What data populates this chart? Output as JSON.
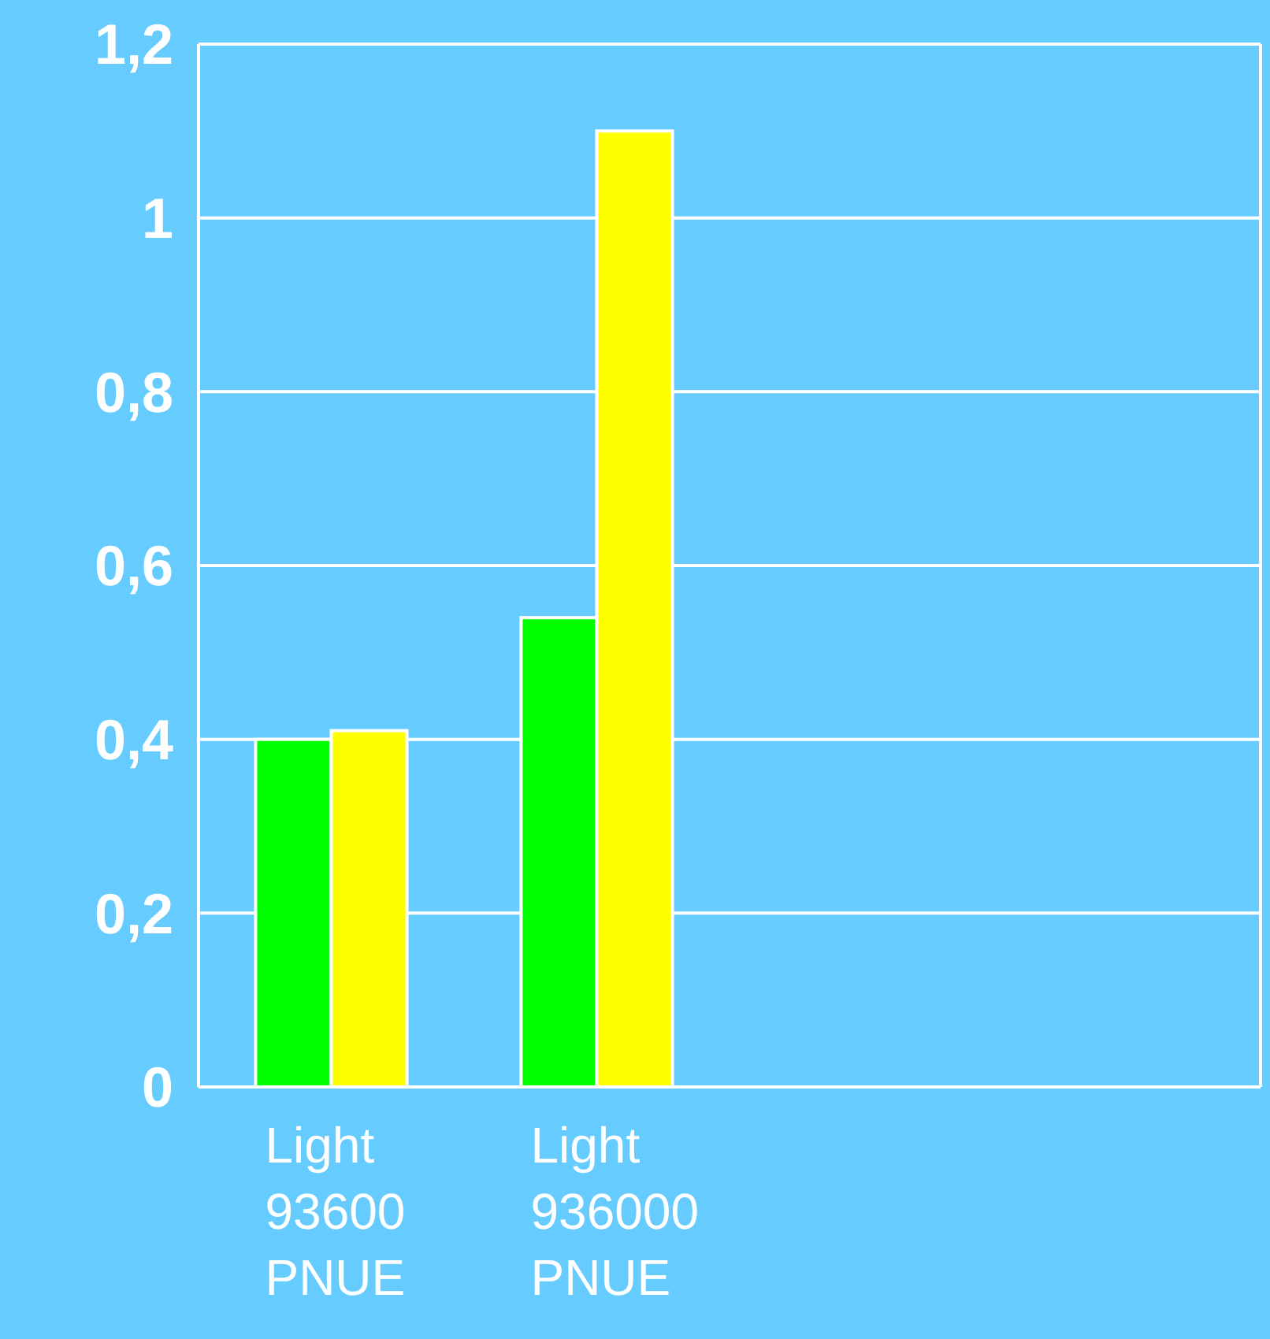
{
  "chart_data": {
    "type": "bar",
    "categories": [
      "Light\n93600\nPNUE",
      "Light\n936000\nPNUE",
      null,
      null
    ],
    "series": [
      {
        "color": "#00ff00",
        "values": [
          0.4,
          0.54,
          null,
          null
        ]
      },
      {
        "color": "#ffff00",
        "values": [
          0.41,
          1.1,
          null,
          null
        ]
      }
    ],
    "ylim": [
      0,
      1.2
    ],
    "yticks": [
      {
        "value": 0,
        "label": "0"
      },
      {
        "value": 0.2,
        "label": "0,2"
      },
      {
        "value": 0.4,
        "label": "0,4"
      },
      {
        "value": 0.6,
        "label": "0,6"
      },
      {
        "value": 0.8,
        "label": "0,8"
      },
      {
        "value": 1,
        "label": "1"
      },
      {
        "value": 1.2,
        "label": "1,2"
      }
    ],
    "grid": "y"
  }
}
